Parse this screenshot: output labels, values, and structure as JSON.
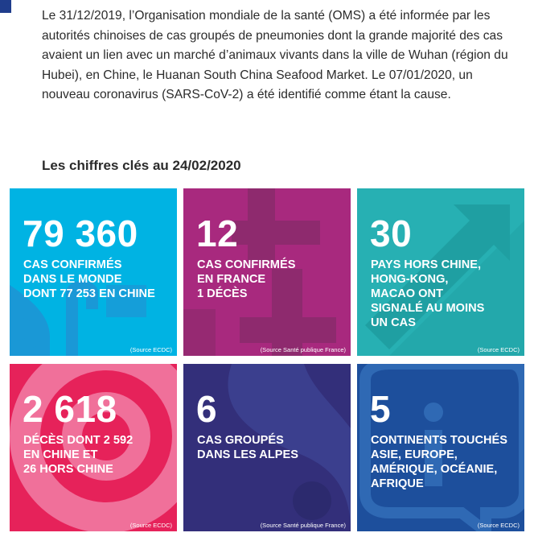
{
  "intro": {
    "text": "Le 31/12/2019, l’Organisation mondiale de la santé (OMS) a été informée par les autorités chinoises de cas groupés de pneumonies dont la grande majorité des cas avaient un lien avec un marché d’animaux vivants dans la ville de Wuhan (région du Hubei), en Chine, le Huanan South China Seafood Market. Le 07/01/2020, un nouveau coronavirus (SARS-CoV-2) a été identifié comme étant la cause."
  },
  "section_title": "Les chiffres clés au 24/02/2020",
  "tiles": [
    {
      "number": "79 360",
      "description": "CAS CONFIRMÉS\nDANS LE MONDE\nDONT 77 253 EN CHINE",
      "source": "(Source ECDC)",
      "color": "#00b3e3"
    },
    {
      "number": "12",
      "description": "CAS CONFIRMÉS\nEN FRANCE\n1 DÉCÈS",
      "source": "(Source Santé publique France)",
      "color": "#a8297e"
    },
    {
      "number": "30",
      "description": "PAYS HORS CHINE,\nHONG-KONG,\nMACAO ONT\nSIGNALÉ AU MOINS\nUN CAS",
      "source": "(Source ECDC)",
      "color": "#27b0b3"
    },
    {
      "number": "2 618",
      "description": "DÉCÈS DONT 2 592\nEN CHINE ET\n26 HORS CHINE",
      "source": "(Source ECDC)",
      "color": "#e6225a"
    },
    {
      "number": "6",
      "description": "CAS GROUPÉS\nDANS LES ALPES",
      "source": "(Source Santé publique France)",
      "color": "#3b3f8e"
    },
    {
      "number": "5",
      "description": "CONTINENTS TOUCHÉS\nASIE, EUROPE,\nAMÉRIQUE, OCÉANIE,\nAFRIQUE",
      "source": "(Source ECDC)",
      "color": "#1d4f9c"
    }
  ]
}
